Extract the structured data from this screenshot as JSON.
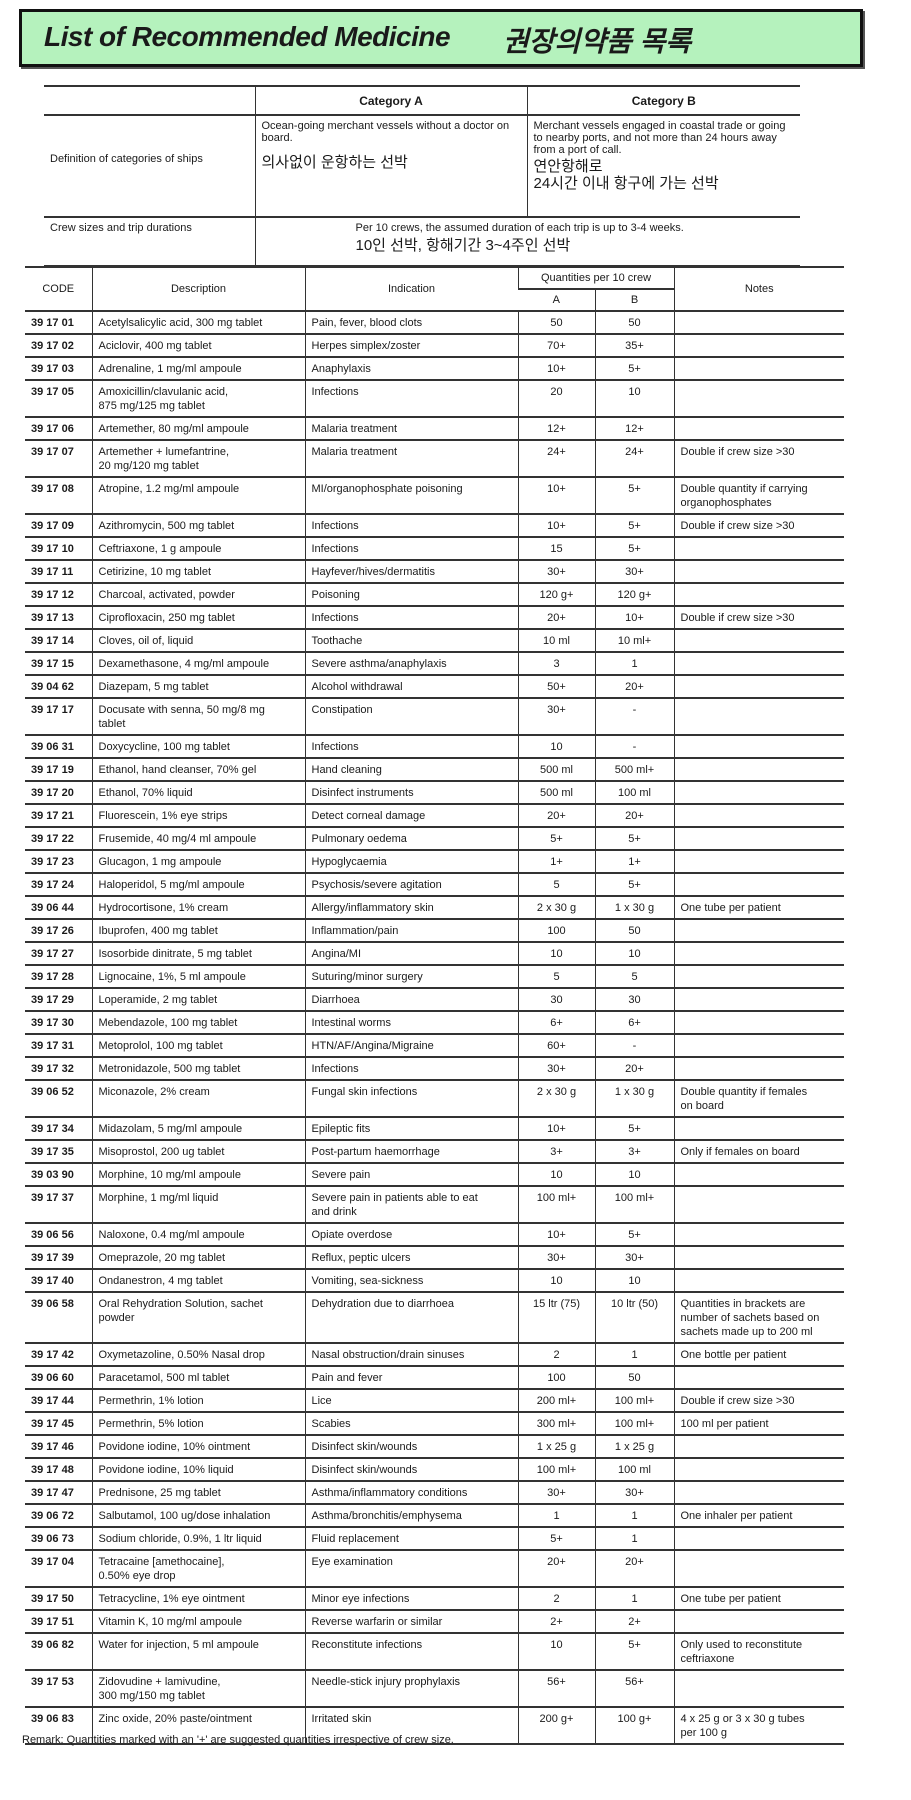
{
  "title": {
    "english": "List of Recommended Medicine",
    "korean": "권장의약품 목록"
  },
  "categories": {
    "header": {
      "a": "Category A",
      "b": "Category B"
    },
    "definition": {
      "label": "Definition of categories of ships",
      "a": "Ocean-going merchant vessels without a doctor on board.",
      "a_ko": "의사없이 운항하는 선박",
      "b": "Merchant vessels engaged in coastal trade or going to nearby ports, and not more than 24 hours away from a port of call.",
      "b_ko": "연안항해로\n24시간 이내 항구에 가는 선박"
    },
    "crew": {
      "label": "Crew sizes and trip durations",
      "text": "Per 10 crews, the assumed duration of each trip is up to 3-4 weeks.",
      "text_ko": "10인 선박, 항해기간 3~4주인 선박"
    }
  },
  "table": {
    "headers": {
      "code": "CODE",
      "description": "Description",
      "indication": "Indication",
      "quantities": "Quantities per 10 crew",
      "a": "A",
      "b": "B",
      "notes": "Notes"
    },
    "rows": [
      [
        "39 17 01",
        "Acetylsalicylic acid, 300 mg tablet",
        "Pain, fever, blood clots",
        "50",
        "50",
        ""
      ],
      [
        "39 17 02",
        "Aciclovir, 400 mg tablet",
        "Herpes simplex/zoster",
        "70+",
        "35+",
        ""
      ],
      [
        "39 17 03",
        "Adrenaline, 1 mg/ml ampoule",
        "Anaphylaxis",
        "10+",
        "5+",
        ""
      ],
      [
        "39 17 05",
        "Amoxicillin/clavulanic acid,\n875 mg/125 mg tablet",
        "Infections",
        "20",
        "10",
        ""
      ],
      [
        "39 17 06",
        "Artemether, 80 mg/ml ampoule",
        "Malaria treatment",
        "12+",
        "12+",
        ""
      ],
      [
        "39 17 07",
        "Artemether + lumefantrine,\n20 mg/120 mg tablet",
        "Malaria treatment",
        "24+",
        "24+",
        "Double if crew size >30"
      ],
      [
        "39 17 08",
        "Atropine, 1.2 mg/ml ampoule",
        "MI/organophosphate poisoning",
        "10+",
        "5+",
        "Double quantity if carrying\norganophosphates"
      ],
      [
        "39 17 09",
        "Azithromycin, 500 mg tablet",
        "Infections",
        "10+",
        "5+",
        "Double if crew size >30"
      ],
      [
        "39 17 10",
        "Ceftriaxone, 1 g ampoule",
        "Infections",
        "15",
        "5+",
        ""
      ],
      [
        "39 17 11",
        "Cetirizine, 10 mg tablet",
        "Hayfever/hives/dermatitis",
        "30+",
        "30+",
        ""
      ],
      [
        "39 17 12",
        "Charcoal, activated, powder",
        "Poisoning",
        "120 g+",
        "120 g+",
        ""
      ],
      [
        "39 17 13",
        "Ciprofloxacin, 250 mg tablet",
        "Infections",
        "20+",
        "10+",
        "Double if crew size >30"
      ],
      [
        "39 17 14",
        "Cloves, oil of, liquid",
        "Toothache",
        "10 ml",
        "10 ml+",
        ""
      ],
      [
        "39 17 15",
        "Dexamethasone, 4 mg/ml ampoule",
        "Severe asthma/anaphylaxis",
        "3",
        "1",
        ""
      ],
      [
        "39 04 62",
        "Diazepam, 5 mg tablet",
        "Alcohol withdrawal",
        "50+",
        "20+",
        ""
      ],
      [
        "39 17 17",
        "Docusate with senna, 50 mg/8 mg\ntablet",
        "Constipation",
        "30+",
        "-",
        ""
      ],
      [
        "39 06 31",
        "Doxycycline, 100 mg tablet",
        "Infections",
        "10",
        "-",
        ""
      ],
      [
        "39 17 19",
        "Ethanol, hand cleanser, 70% gel",
        "Hand cleaning",
        "500 ml",
        "500 ml+",
        ""
      ],
      [
        "39 17 20",
        "Ethanol, 70% liquid",
        "Disinfect instruments",
        "500 ml",
        "100 ml",
        ""
      ],
      [
        "39 17 21",
        "Fluorescein, 1% eye strips",
        "Detect corneal damage",
        "20+",
        "20+",
        ""
      ],
      [
        "39 17 22",
        "Frusemide, 40 mg/4 ml ampoule",
        "Pulmonary oedema",
        "5+",
        "5+",
        ""
      ],
      [
        "39 17 23",
        "Glucagon, 1 mg ampoule",
        "Hypoglycaemia",
        "1+",
        "1+",
        ""
      ],
      [
        "39 17 24",
        "Haloperidol, 5 mg/ml ampoule",
        "Psychosis/severe agitation",
        "5",
        "5+",
        ""
      ],
      [
        "39 06 44",
        "Hydrocortisone, 1% cream",
        "Allergy/inflammatory skin",
        "2 x 30 g",
        "1 x 30 g",
        "One tube per patient"
      ],
      [
        "39 17 26",
        "Ibuprofen, 400 mg tablet",
        "Inflammation/pain",
        "100",
        "50",
        ""
      ],
      [
        "39 17 27",
        "Isosorbide dinitrate, 5 mg tablet",
        "Angina/MI",
        "10",
        "10",
        ""
      ],
      [
        "39 17 28",
        "Lignocaine, 1%, 5 ml ampoule",
        "Suturing/minor surgery",
        "5",
        "5",
        ""
      ],
      [
        "39 17 29",
        "Loperamide, 2 mg tablet",
        "Diarrhoea",
        "30",
        "30",
        ""
      ],
      [
        "39 17 30",
        "Mebendazole, 100 mg tablet",
        "Intestinal worms",
        "6+",
        "6+",
        ""
      ],
      [
        "39 17 31",
        "Metoprolol, 100 mg tablet",
        "HTN/AF/Angina/Migraine",
        "60+",
        "-",
        ""
      ],
      [
        "39 17 32",
        "Metronidazole, 500 mg tablet",
        "Infections",
        "30+",
        "20+",
        ""
      ],
      [
        "39 06 52",
        "Miconazole, 2% cream",
        "Fungal skin infections",
        "2 x 30 g",
        "1 x 30 g",
        "Double quantity if females\non board"
      ],
      [
        "39 17 34",
        "Midazolam, 5 mg/ml ampoule",
        "Epileptic fits",
        "10+",
        "5+",
        ""
      ],
      [
        "39 17 35",
        "Misoprostol, 200 ug tablet",
        "Post-partum haemorrhage",
        "3+",
        "3+",
        "Only if females on board"
      ],
      [
        "39 03 90",
        "Morphine, 10 mg/ml ampoule",
        "Severe pain",
        "10",
        "10",
        ""
      ],
      [
        "39 17 37",
        "Morphine, 1 mg/ml liquid",
        "Severe pain in patients able to eat\nand drink",
        "100 ml+",
        "100 ml+",
        ""
      ],
      [
        "39 06 56",
        "Naloxone, 0.4 mg/ml ampoule",
        "Opiate overdose",
        "10+",
        "5+",
        ""
      ],
      [
        "39 17 39",
        "Omeprazole, 20 mg tablet",
        "Reflux, peptic ulcers",
        "30+",
        "30+",
        ""
      ],
      [
        "39 17 40",
        "Ondanestron, 4 mg tablet",
        "Vomiting, sea-sickness",
        "10",
        "10",
        ""
      ],
      [
        "39 06 58",
        "Oral Rehydration Solution, sachet\npowder",
        "Dehydration due to diarrhoea",
        "15 ltr (75)",
        "10 ltr (50)",
        "Quantities in brackets are\nnumber of sachets based on\nsachets made up to 200 ml"
      ],
      [
        "39 17 42",
        "Oxymetazoline, 0.50% Nasal drop",
        "Nasal obstruction/drain sinuses",
        "2",
        "1",
        "One bottle per patient"
      ],
      [
        "39 06 60",
        "Paracetamol, 500 ml tablet",
        "Pain and fever",
        "100",
        "50",
        ""
      ],
      [
        "39 17 44",
        "Permethrin, 1% lotion",
        "Lice",
        "200 ml+",
        "100 ml+",
        "Double if crew size >30"
      ],
      [
        "39 17 45",
        "Permethrin, 5% lotion",
        "Scabies",
        "300 ml+",
        "100 ml+",
        "100 ml per patient"
      ],
      [
        "39 17 46",
        "Povidone iodine, 10% ointment",
        "Disinfect skin/wounds",
        "1 x 25 g",
        "1 x 25 g",
        ""
      ],
      [
        "39 17 48",
        "Povidone iodine, 10% liquid",
        "Disinfect skin/wounds",
        "100 ml+",
        "100 ml",
        ""
      ],
      [
        "39 17 47",
        "Prednisone, 25 mg tablet",
        "Asthma/inflammatory conditions",
        "30+",
        "30+",
        ""
      ],
      [
        "39 06 72",
        "Salbutamol, 100 ug/dose inhalation",
        "Asthma/bronchitis/emphysema",
        "1",
        "1",
        "One inhaler per patient"
      ],
      [
        "39 06 73",
        "Sodium chloride, 0.9%, 1 ltr liquid",
        "Fluid replacement",
        "5+",
        "1",
        ""
      ],
      [
        "39 17 04",
        "Tetracaine [amethocaine],\n0.50% eye drop",
        "Eye examination",
        "20+",
        "20+",
        ""
      ],
      [
        "39 17 50",
        "Tetracycline, 1% eye ointment",
        "Minor eye infections",
        "2",
        "1",
        "One tube per patient"
      ],
      [
        "39 17 51",
        "Vitamin K, 10 mg/ml ampoule",
        "Reverse warfarin or similar",
        "2+",
        "2+",
        ""
      ],
      [
        "39 06 82",
        "Water for injection, 5 ml ampoule",
        "Reconstitute infections",
        "10",
        "5+",
        "Only used to reconstitute\nceftriaxone"
      ],
      [
        "39 17 53",
        "Zidovudine + lamivudine,\n300 mg/150 mg tablet",
        "Needle-stick injury prophylaxis",
        "56+",
        "56+",
        ""
      ],
      [
        "39 06 83",
        "Zinc oxide, 20% paste/ointment",
        "Irritated skin",
        "200 g+",
        "100 g+",
        "4 x 25 g or 3 x 30 g tubes\nper 100 g"
      ]
    ]
  },
  "remark": "Remark:  Quantities marked with an '+' are suggested quantities irrespective of crew size.",
  "colors": {
    "title_background": "#b5f2bd"
  }
}
